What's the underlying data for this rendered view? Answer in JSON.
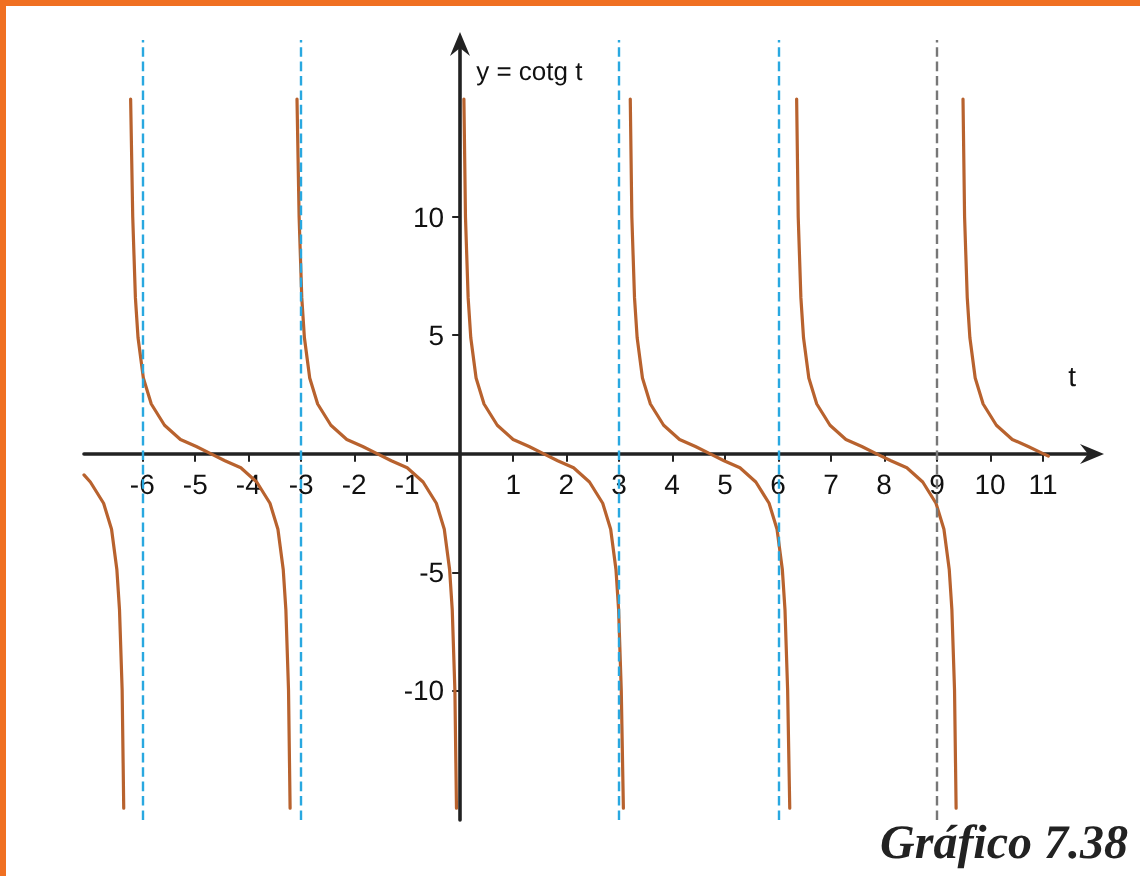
{
  "chart_data": {
    "type": "line",
    "xlabel": "t",
    "ylabel": "y = cotg t",
    "annotations": [
      "Gráfico 7.38"
    ],
    "xlim": [
      -7.1,
      12
    ],
    "ylim": [
      -15.5,
      17.5
    ],
    "xticks": [
      -6,
      -5,
      -4,
      -3,
      -2,
      -1,
      1,
      2,
      3,
      4,
      5,
      6,
      7,
      8,
      9,
      10,
      11
    ],
    "yticks": [
      -10,
      -5,
      5,
      10
    ],
    "grid": false,
    "marker": "none",
    "line_style": "solid",
    "series": [
      {
        "color": "#b8622e",
        "x": [
          -7.1,
          -6.98,
          -6.73,
          -6.58,
          -6.48,
          -6.43,
          -6.38,
          -6.35
        ],
        "values": [
          -0.9,
          -1.2,
          -2.1,
          -3.2,
          -4.9,
          -6.6,
          -10,
          -15
        ]
      },
      {
        "color": "#b8622e",
        "x": [
          -6.22,
          -6.18,
          -6.13,
          -6.08,
          -5.98,
          -5.83,
          -5.58,
          -5.28,
          -4.98,
          -4.71,
          -4.44,
          -4.14,
          -3.84,
          -3.59,
          -3.44,
          -3.34,
          -3.29,
          -3.24,
          -3.21
        ],
        "values": [
          15,
          10,
          6.6,
          4.9,
          3.2,
          2.1,
          1.2,
          0.6,
          0.3,
          0,
          -0.3,
          -0.6,
          -1.2,
          -2.1,
          -3.2,
          -4.9,
          -6.6,
          -10,
          -15
        ]
      },
      {
        "color": "#b8622e",
        "x": [
          -3.08,
          -3.04,
          -2.99,
          -2.94,
          -2.84,
          -2.69,
          -2.44,
          -2.14,
          -1.84,
          -1.57,
          -1.3,
          -1.0,
          -0.7,
          -0.45,
          -0.3,
          -0.2,
          -0.15,
          -0.1,
          -0.07
        ],
        "values": [
          15,
          10,
          6.6,
          4.9,
          3.2,
          2.1,
          1.2,
          0.6,
          0.3,
          0,
          -0.3,
          -0.6,
          -1.2,
          -2.1,
          -3.2,
          -4.9,
          -6.6,
          -10,
          -15
        ]
      },
      {
        "color": "#b8622e",
        "x": [
          0.07,
          0.1,
          0.15,
          0.2,
          0.3,
          0.45,
          0.7,
          1.0,
          1.3,
          1.57,
          1.84,
          2.14,
          2.44,
          2.69,
          2.84,
          2.94,
          2.99,
          3.04,
          3.08
        ],
        "values": [
          15,
          10,
          6.6,
          4.9,
          3.2,
          2.1,
          1.2,
          0.6,
          0.3,
          0,
          -0.3,
          -0.6,
          -1.2,
          -2.1,
          -3.2,
          -4.9,
          -6.6,
          -10,
          -15
        ]
      },
      {
        "color": "#b8622e",
        "x": [
          3.21,
          3.24,
          3.29,
          3.34,
          3.44,
          3.59,
          3.84,
          4.14,
          4.44,
          4.71,
          4.98,
          5.28,
          5.58,
          5.83,
          5.98,
          6.08,
          6.13,
          6.18,
          6.22
        ],
        "values": [
          15,
          10,
          6.6,
          4.9,
          3.2,
          2.1,
          1.2,
          0.6,
          0.3,
          0,
          -0.3,
          -0.6,
          -1.2,
          -2.1,
          -3.2,
          -4.9,
          -6.6,
          -10,
          -15
        ]
      },
      {
        "color": "#b8622e",
        "x": [
          6.35,
          6.38,
          6.43,
          6.48,
          6.58,
          6.73,
          6.98,
          7.28,
          7.58,
          7.85,
          8.13,
          8.43,
          8.73,
          8.98,
          9.13,
          9.23,
          9.28,
          9.33,
          9.36
        ],
        "values": [
          15,
          10,
          6.6,
          4.9,
          3.2,
          2.1,
          1.2,
          0.6,
          0.3,
          0,
          -0.3,
          -0.6,
          -1.2,
          -2.1,
          -3.2,
          -4.9,
          -6.6,
          -10,
          -15
        ]
      },
      {
        "color": "#b8622e",
        "x": [
          9.49,
          9.52,
          9.57,
          9.62,
          9.72,
          9.87,
          10.12,
          10.42,
          10.72,
          11.0,
          11.1
        ],
        "values": [
          15,
          10,
          6.6,
          4.9,
          3.2,
          2.1,
          1.2,
          0.6,
          0.3,
          0,
          -0.1
        ]
      }
    ],
    "ref_lines": [
      {
        "axis": "x",
        "value": -6,
        "color": "#29a8e0",
        "line_style": "dashed"
      },
      {
        "axis": "x",
        "value": -3,
        "color": "#29a8e0",
        "line_style": "dashed"
      },
      {
        "axis": "x",
        "value": 3,
        "color": "#29a8e0",
        "line_style": "dashed"
      },
      {
        "axis": "x",
        "value": 6,
        "color": "#29a8e0",
        "line_style": "dashed"
      },
      {
        "axis": "x",
        "value": 9,
        "color": "#777777",
        "line_style": "dashed"
      }
    ]
  }
}
